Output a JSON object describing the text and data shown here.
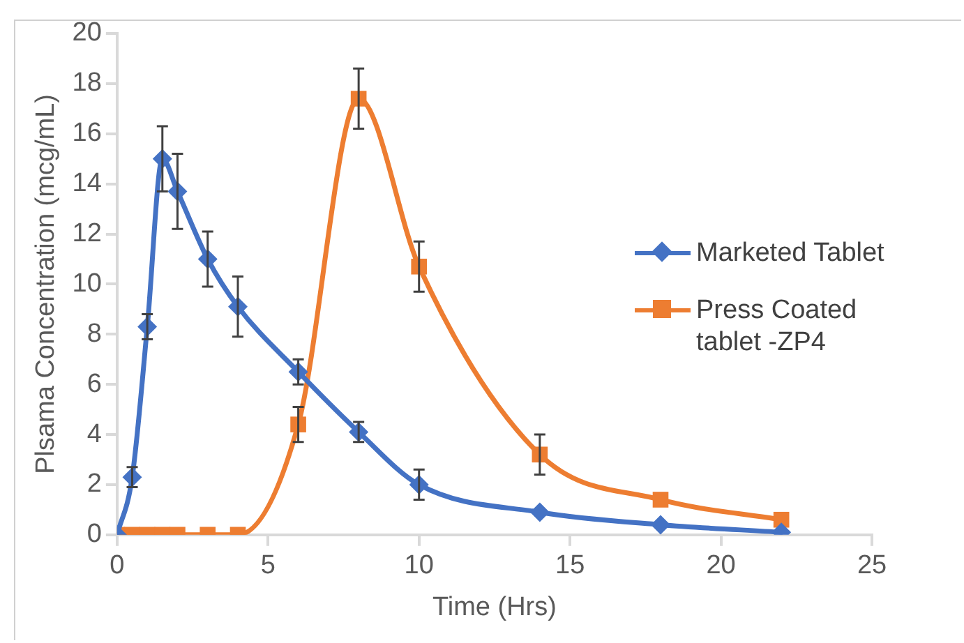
{
  "chart_data": {
    "type": "line",
    "xlabel": "Time (Hrs)",
    "ylabel": "Plsama Concentration (mcg/mL)",
    "x": [
      0,
      0.5,
      1,
      1.5,
      2,
      3,
      4,
      6,
      8,
      10,
      14,
      18,
      22
    ],
    "series": [
      {
        "name": "Marketed Tablet",
        "color": "#4472c4",
        "marker": "diamond",
        "values": [
          0,
          2.3,
          8.3,
          15.0,
          13.7,
          11.0,
          9.1,
          6.5,
          4.1,
          2.0,
          0.9,
          0.4,
          0.1
        ],
        "errors": [
          null,
          0.4,
          0.5,
          1.3,
          1.5,
          1.1,
          1.2,
          0.5,
          0.4,
          0.6,
          null,
          null,
          null
        ]
      },
      {
        "name": "Press Coated tablet -ZP4",
        "color": "#ed7d31",
        "marker": "square",
        "values": [
          0,
          0,
          0,
          0,
          0,
          0,
          0,
          4.4,
          17.4,
          10.7,
          3.2,
          1.4,
          0.6
        ],
        "errors": [
          null,
          null,
          null,
          null,
          null,
          null,
          null,
          0.7,
          1.2,
          1.0,
          0.8,
          null,
          null
        ]
      }
    ],
    "xlim": [
      0,
      25
    ],
    "xticks": [
      0,
      5,
      10,
      15,
      20,
      25
    ],
    "ylim": [
      0,
      20
    ],
    "yticks": [
      0,
      2,
      4,
      6,
      8,
      10,
      12,
      14,
      16,
      18,
      20
    ],
    "grid": false,
    "legend": "right",
    "line_style": "solid"
  }
}
